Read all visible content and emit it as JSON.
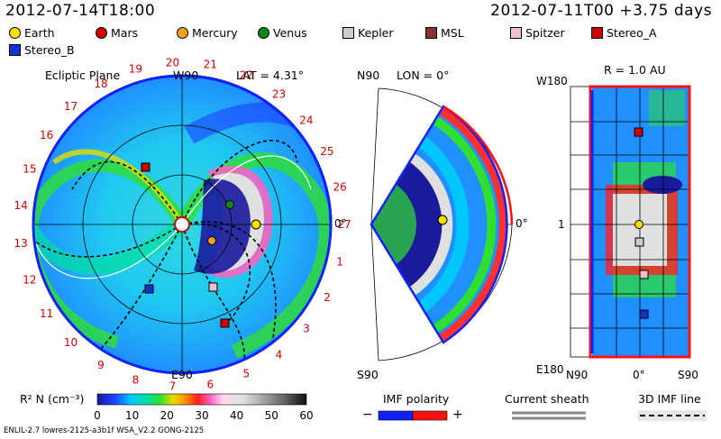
{
  "header": {
    "time_left": "2012-07-14T18:00",
    "time_right": "2012-07-11T00 +3.75 days"
  },
  "legend": [
    {
      "label": "Earth",
      "color": "#f5e000",
      "shape": "circle"
    },
    {
      "label": "Mars",
      "color": "#d00000",
      "shape": "circle"
    },
    {
      "label": "Mercury",
      "color": "#f0a020",
      "shape": "circle"
    },
    {
      "label": "Venus",
      "color": "#118811",
      "shape": "circle"
    },
    {
      "label": "Kepler",
      "color": "#cccccc",
      "shape": "square"
    },
    {
      "label": "MSL",
      "color": "#883333",
      "shape": "square"
    },
    {
      "label": "Spitzer",
      "color": "#f4c0c8",
      "shape": "square"
    },
    {
      "label": "Stereo_A",
      "color": "#d00000",
      "shape": "square"
    },
    {
      "label": "Stereo_B",
      "color": "#1133cc",
      "shape": "square"
    }
  ],
  "ecliptic": {
    "title": "Ecliptic Plane",
    "lat": "LAT = 4.31°",
    "top": "W90",
    "bottom": "E90",
    "right": "0°",
    "hours": [
      "1",
      "2",
      "3",
      "4",
      "5",
      "6",
      "7",
      "8",
      "9",
      "10",
      "11",
      "12",
      "13",
      "14",
      "15",
      "16",
      "17",
      "18",
      "19",
      "20",
      "21",
      "22",
      "23",
      "24",
      "25",
      "26",
      "27"
    ]
  },
  "meridional": {
    "lon": "LON = 0°",
    "top": "N90",
    "bottom": "S90",
    "right": "0°"
  },
  "radial": {
    "title": "R = 1.0 AU",
    "top_left": "W180",
    "bottom_left": "E180",
    "mid_left": "1",
    "bottom_axis": [
      "N90",
      "0°",
      "S90"
    ]
  },
  "colorbar": {
    "label": "R² N (cm⁻³)",
    "ticks": [
      "0",
      "10",
      "20",
      "30",
      "40",
      "50",
      "60"
    ],
    "colors": [
      "#1a1a9c",
      "#1e40ff",
      "#00c8ff",
      "#00e0a0",
      "#30e030",
      "#e0e000",
      "#ff9000",
      "#ff2020",
      "#ff60c0",
      "#ffd8f0",
      "#e0e0e0",
      "#a0a0a0",
      "#606060",
      "#202020"
    ]
  },
  "imf": {
    "title": "IMF polarity",
    "minus": "−",
    "plus": "+",
    "neg_color": "#1020ff",
    "pos_color": "#ff1010"
  },
  "sheath": {
    "title": "Current sheath"
  },
  "imf_line": {
    "title": "3D IMF line"
  },
  "footer": {
    "model": "ENLIL-2.7 lowres-2125-a3b1f WSA_V2.2 GONG-2125"
  }
}
